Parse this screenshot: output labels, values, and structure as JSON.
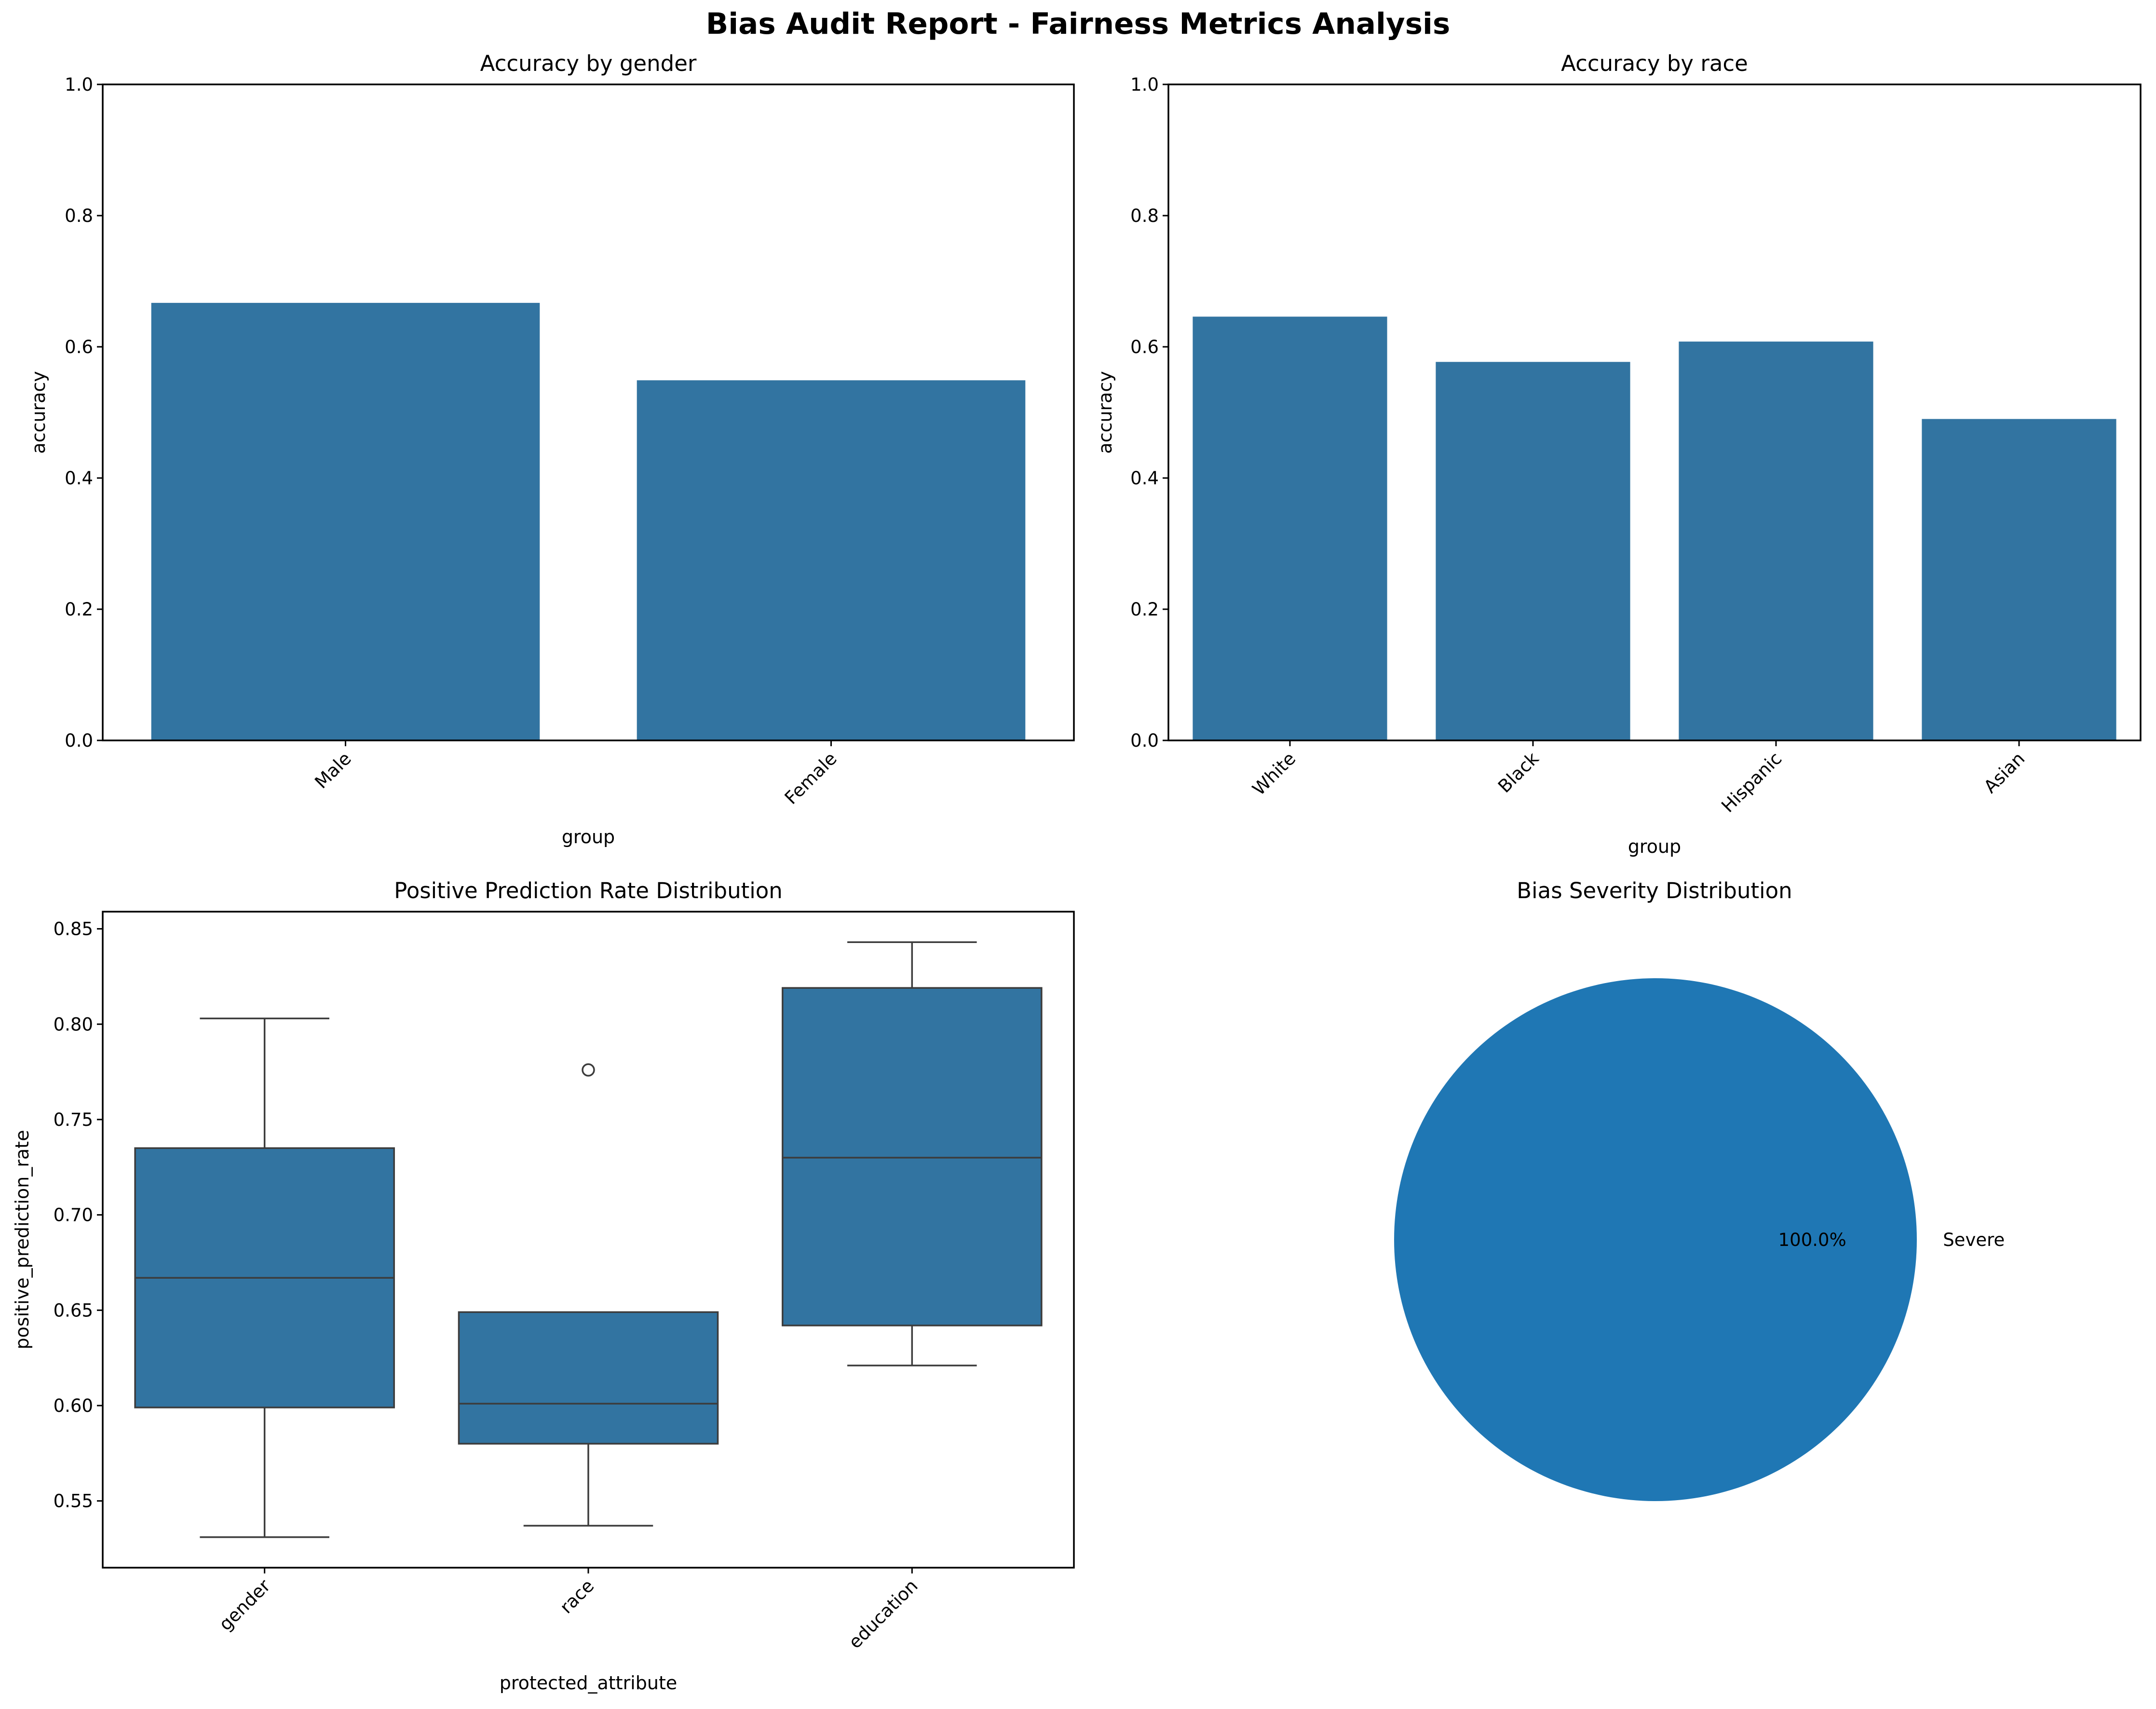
{
  "figure": {
    "title": "Bias Audit Report - Fairness Metrics Analysis",
    "bar_color": "#3274a1",
    "pie_color": "#1f77b4",
    "line_color": "#3c3c3c"
  },
  "chart_data": [
    {
      "type": "bar",
      "title": "Accuracy by gender",
      "xlabel": "group",
      "ylabel": "accuracy",
      "categories": [
        "Male",
        "Female"
      ],
      "values": [
        0.667,
        0.549
      ],
      "ylim": [
        0,
        1.0
      ],
      "yticks": [
        "0.0",
        "0.2",
        "0.4",
        "0.6",
        "0.8",
        "1.0"
      ],
      "grid": false
    },
    {
      "type": "bar",
      "title": "Accuracy by race",
      "xlabel": "group",
      "ylabel": "accuracy",
      "categories": [
        "White",
        "Black",
        "Hispanic",
        "Asian"
      ],
      "values": [
        0.646,
        0.577,
        0.608,
        0.49
      ],
      "ylim": [
        0,
        1.0
      ],
      "yticks": [
        "0.0",
        "0.2",
        "0.4",
        "0.6",
        "0.8",
        "1.0"
      ],
      "grid": false
    },
    {
      "type": "box",
      "title": "Positive Prediction Rate Distribution",
      "xlabel": "protected_attribute",
      "ylabel": "positive_prediction_rate",
      "categories": [
        "gender",
        "race",
        "education"
      ],
      "boxes": [
        {
          "whisker_low": 0.531,
          "q1": 0.599,
          "median": 0.667,
          "q3": 0.735,
          "whisker_high": 0.803,
          "outliers": []
        },
        {
          "whisker_low": 0.537,
          "q1": 0.58,
          "median": 0.601,
          "q3": 0.649,
          "whisker_high": 0.649,
          "outliers": [
            0.776
          ]
        },
        {
          "whisker_low": 0.621,
          "q1": 0.642,
          "median": 0.73,
          "q3": 0.819,
          "whisker_high": 0.843,
          "outliers": []
        }
      ],
      "ylim": [
        0.515,
        0.859
      ],
      "yticks": [
        "0.55",
        "0.60",
        "0.65",
        "0.70",
        "0.75",
        "0.80",
        "0.85"
      ],
      "grid": false
    },
    {
      "type": "pie",
      "title": "Bias Severity Distribution",
      "slices": [
        {
          "label": "Severe",
          "value": 100.0,
          "pct_label": "100.0%"
        }
      ]
    }
  ]
}
